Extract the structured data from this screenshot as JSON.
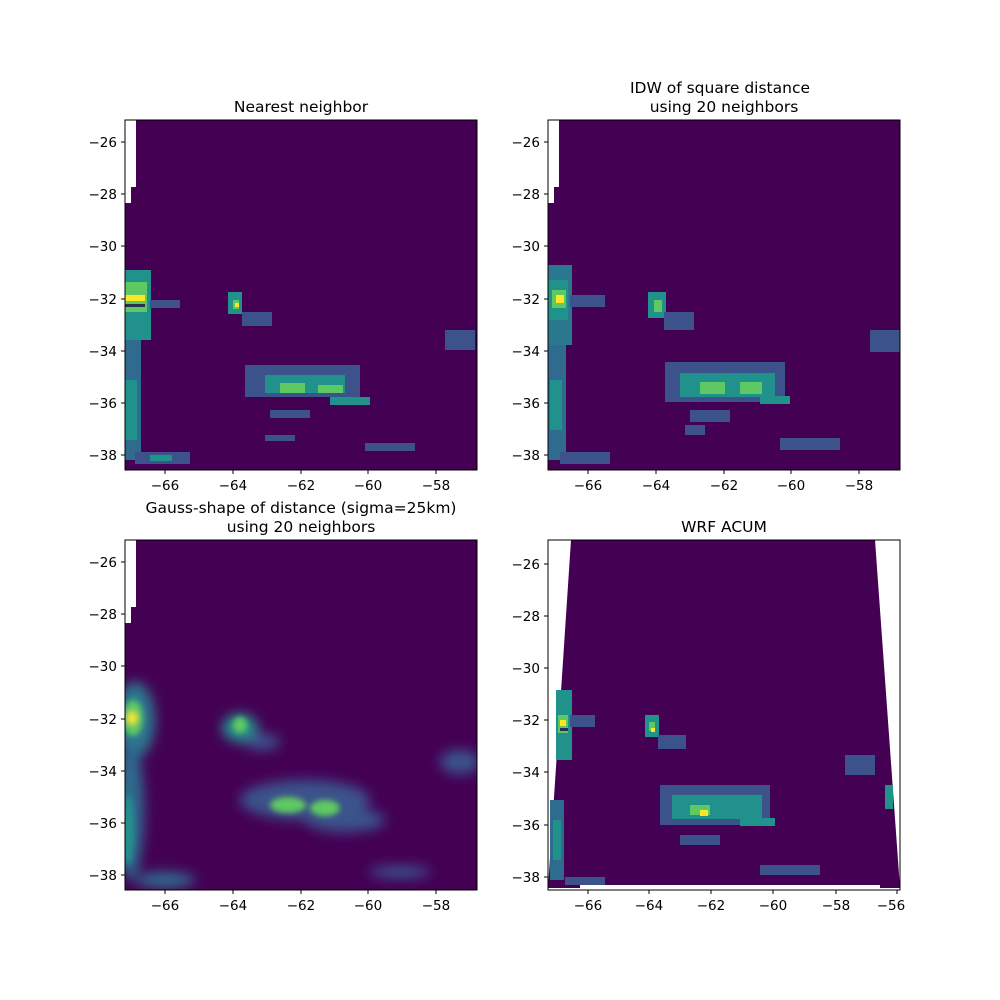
{
  "chart_data": [
    {
      "type": "heatmap",
      "title_lines": [
        "Nearest neighbor"
      ],
      "xlim": [
        -67.2,
        -56.8
      ],
      "ylim": [
        -38.6,
        -25.2
      ],
      "xticks": [
        -66,
        -64,
        -62,
        -60,
        -58
      ],
      "xtick_labels": [
        "−66",
        "−64",
        "−62",
        "−60",
        "−58"
      ],
      "yticks": [
        -26,
        -28,
        -30,
        -32,
        -34,
        -36,
        -38
      ],
      "ytick_labels": [
        "−26",
        "−28",
        "−30",
        "−32",
        "−34",
        "−36",
        "−38"
      ],
      "colormap": "viridis"
    },
    {
      "type": "heatmap",
      "title_lines": [
        "IDW of square distance",
        "using 20 neighbors"
      ],
      "xlim": [
        -67.2,
        -56.8
      ],
      "ylim": [
        -38.6,
        -25.2
      ],
      "xticks": [
        -66,
        -64,
        -62,
        -60,
        -58
      ],
      "xtick_labels": [
        "−66",
        "−64",
        "−62",
        "−60",
        "−58"
      ],
      "yticks": [
        -26,
        -28,
        -30,
        -32,
        -34,
        -36,
        -38
      ],
      "ytick_labels": [
        "−26",
        "−28",
        "−30",
        "−32",
        "−34",
        "−36",
        "−38"
      ],
      "colormap": "viridis"
    },
    {
      "type": "heatmap",
      "title_lines": [
        "Gauss-shape of distance (sigma=25km)",
        "using 20 neighbors"
      ],
      "xlim": [
        -67.2,
        -56.8
      ],
      "ylim": [
        -38.6,
        -25.2
      ],
      "xticks": [
        -66,
        -64,
        -62,
        -60,
        -58
      ],
      "xtick_labels": [
        "−66",
        "−64",
        "−62",
        "−60",
        "−58"
      ],
      "yticks": [
        -26,
        -28,
        -30,
        -32,
        -34,
        -36,
        -38
      ],
      "ytick_labels": [
        "−26",
        "−28",
        "−30",
        "−32",
        "−34",
        "−36",
        "−38"
      ],
      "colormap": "viridis"
    },
    {
      "type": "heatmap",
      "title_lines": [
        "WRF ACUM"
      ],
      "xlim": [
        -67.2,
        -55.95
      ],
      "ylim": [
        -38.45,
        -25.2
      ],
      "xticks": [
        -66,
        -64,
        -62,
        -60,
        -58,
        -56
      ],
      "xtick_labels": [
        "−66",
        "−64",
        "−62",
        "−60",
        "−58",
        "−56"
      ],
      "yticks": [
        -26,
        -28,
        -30,
        -32,
        -34,
        -36,
        -38
      ],
      "ytick_labels": [
        "−26",
        "−28",
        "−30",
        "−32",
        "−34",
        "−36",
        "−38"
      ],
      "colormap": "viridis"
    }
  ],
  "colors": {
    "background_field": "#440154",
    "low": "#3b528b",
    "mid": "#21918c",
    "high": "#5ec962",
    "peak": "#fde725"
  }
}
